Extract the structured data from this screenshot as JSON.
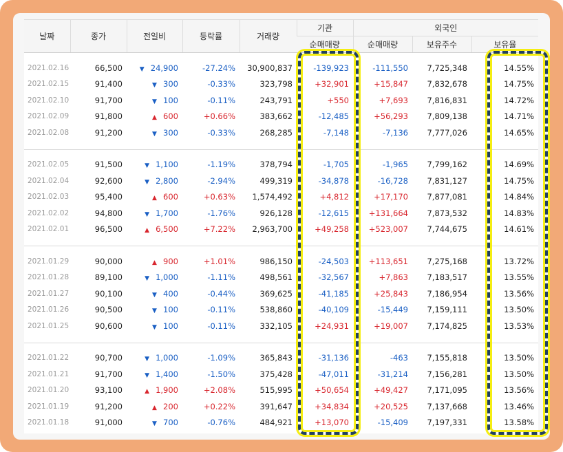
{
  "headers": {
    "date": "날짜",
    "close": "종가",
    "change": "전일비",
    "rate": "등락률",
    "volume": "거래량",
    "institution": "기관",
    "inst_net": "순매매량",
    "foreign": "외국인",
    "foreign_net": "순매매량",
    "foreign_hold": "보유주수",
    "foreign_ratio": "보유율"
  },
  "colors": {
    "up": "#d8262e",
    "down": "#1a5fc4",
    "highlight": "#f5ee12",
    "frame": "#f2a977"
  },
  "groups": [
    {
      "rows": [
        {
          "date": "2021.02.16",
          "close": "66,500",
          "dir": "down",
          "change": "24,900",
          "rate": "-27.24%",
          "volume": "30,900,837",
          "inst": "-139,923",
          "forn": "-111,550",
          "hold": "7,725,348",
          "ratio": "14.55%"
        },
        {
          "date": "2021.02.15",
          "close": "91,400",
          "dir": "down",
          "change": "300",
          "rate": "-0.33%",
          "volume": "323,798",
          "inst": "+32,901",
          "forn": "+15,847",
          "hold": "7,832,678",
          "ratio": "14.75%"
        },
        {
          "date": "2021.02.10",
          "close": "91,700",
          "dir": "down",
          "change": "100",
          "rate": "-0.11%",
          "volume": "243,791",
          "inst": "+550",
          "forn": "+7,693",
          "hold": "7,816,831",
          "ratio": "14.72%"
        },
        {
          "date": "2021.02.09",
          "close": "91,800",
          "dir": "up",
          "change": "600",
          "rate": "+0.66%",
          "volume": "383,662",
          "inst": "-12,485",
          "forn": "+56,293",
          "hold": "7,809,138",
          "ratio": "14.71%"
        },
        {
          "date": "2021.02.08",
          "close": "91,200",
          "dir": "down",
          "change": "300",
          "rate": "-0.33%",
          "volume": "268,285",
          "inst": "-7,148",
          "forn": "-7,136",
          "hold": "7,777,026",
          "ratio": "14.65%"
        }
      ]
    },
    {
      "rows": [
        {
          "date": "2021.02.05",
          "close": "91,500",
          "dir": "down",
          "change": "1,100",
          "rate": "-1.19%",
          "volume": "378,794",
          "inst": "-1,705",
          "forn": "-1,965",
          "hold": "7,799,162",
          "ratio": "14.69%"
        },
        {
          "date": "2021.02.04",
          "close": "92,600",
          "dir": "down",
          "change": "2,800",
          "rate": "-2.94%",
          "volume": "499,319",
          "inst": "-34,878",
          "forn": "-16,728",
          "hold": "7,831,127",
          "ratio": "14.75%"
        },
        {
          "date": "2021.02.03",
          "close": "95,400",
          "dir": "up",
          "change": "600",
          "rate": "+0.63%",
          "volume": "1,574,492",
          "inst": "+4,812",
          "forn": "+17,170",
          "hold": "7,877,081",
          "ratio": "14.84%"
        },
        {
          "date": "2021.02.02",
          "close": "94,800",
          "dir": "down",
          "change": "1,700",
          "rate": "-1.76%",
          "volume": "926,128",
          "inst": "-12,615",
          "forn": "+131,664",
          "hold": "7,873,532",
          "ratio": "14.83%"
        },
        {
          "date": "2021.02.01",
          "close": "96,500",
          "dir": "up",
          "change": "6,500",
          "rate": "+7.22%",
          "volume": "2,963,700",
          "inst": "+49,258",
          "forn": "+523,007",
          "hold": "7,744,675",
          "ratio": "14.61%"
        }
      ]
    },
    {
      "rows": [
        {
          "date": "2021.01.29",
          "close": "90,000",
          "dir": "up",
          "change": "900",
          "rate": "+1.01%",
          "volume": "986,150",
          "inst": "-24,503",
          "forn": "+113,651",
          "hold": "7,275,168",
          "ratio": "13.72%"
        },
        {
          "date": "2021.01.28",
          "close": "89,100",
          "dir": "down",
          "change": "1,000",
          "rate": "-1.11%",
          "volume": "498,561",
          "inst": "-32,567",
          "forn": "+7,863",
          "hold": "7,183,517",
          "ratio": "13.55%"
        },
        {
          "date": "2021.01.27",
          "close": "90,100",
          "dir": "down",
          "change": "400",
          "rate": "-0.44%",
          "volume": "369,625",
          "inst": "-41,185",
          "forn": "+25,843",
          "hold": "7,186,954",
          "ratio": "13.56%"
        },
        {
          "date": "2021.01.26",
          "close": "90,500",
          "dir": "down",
          "change": "100",
          "rate": "-0.11%",
          "volume": "538,860",
          "inst": "-40,109",
          "forn": "-15,449",
          "hold": "7,159,111",
          "ratio": "13.50%"
        },
        {
          "date": "2021.01.25",
          "close": "90,600",
          "dir": "down",
          "change": "100",
          "rate": "-0.11%",
          "volume": "332,105",
          "inst": "+24,931",
          "forn": "+19,007",
          "hold": "7,174,825",
          "ratio": "13.53%"
        }
      ]
    },
    {
      "rows": [
        {
          "date": "2021.01.22",
          "close": "90,700",
          "dir": "down",
          "change": "1,000",
          "rate": "-1.09%",
          "volume": "365,843",
          "inst": "-31,136",
          "forn": "-463",
          "hold": "7,155,818",
          "ratio": "13.50%"
        },
        {
          "date": "2021.01.21",
          "close": "91,700",
          "dir": "down",
          "change": "1,400",
          "rate": "-1.50%",
          "volume": "375,428",
          "inst": "-47,011",
          "forn": "-31,214",
          "hold": "7,156,281",
          "ratio": "13.50%"
        },
        {
          "date": "2021.01.20",
          "close": "93,100",
          "dir": "up",
          "change": "1,900",
          "rate": "+2.08%",
          "volume": "515,995",
          "inst": "+50,654",
          "forn": "+49,427",
          "hold": "7,171,095",
          "ratio": "13.56%"
        },
        {
          "date": "2021.01.19",
          "close": "91,200",
          "dir": "up",
          "change": "200",
          "rate": "+0.22%",
          "volume": "391,647",
          "inst": "+34,834",
          "forn": "+20,525",
          "hold": "7,137,668",
          "ratio": "13.46%"
        },
        {
          "date": "2021.01.18",
          "close": "91,000",
          "dir": "down",
          "change": "700",
          "rate": "-0.76%",
          "volume": "484,921",
          "inst": "+13,070",
          "forn": "-15,409",
          "hold": "7,197,331",
          "ratio": "13.58%"
        }
      ]
    }
  ]
}
